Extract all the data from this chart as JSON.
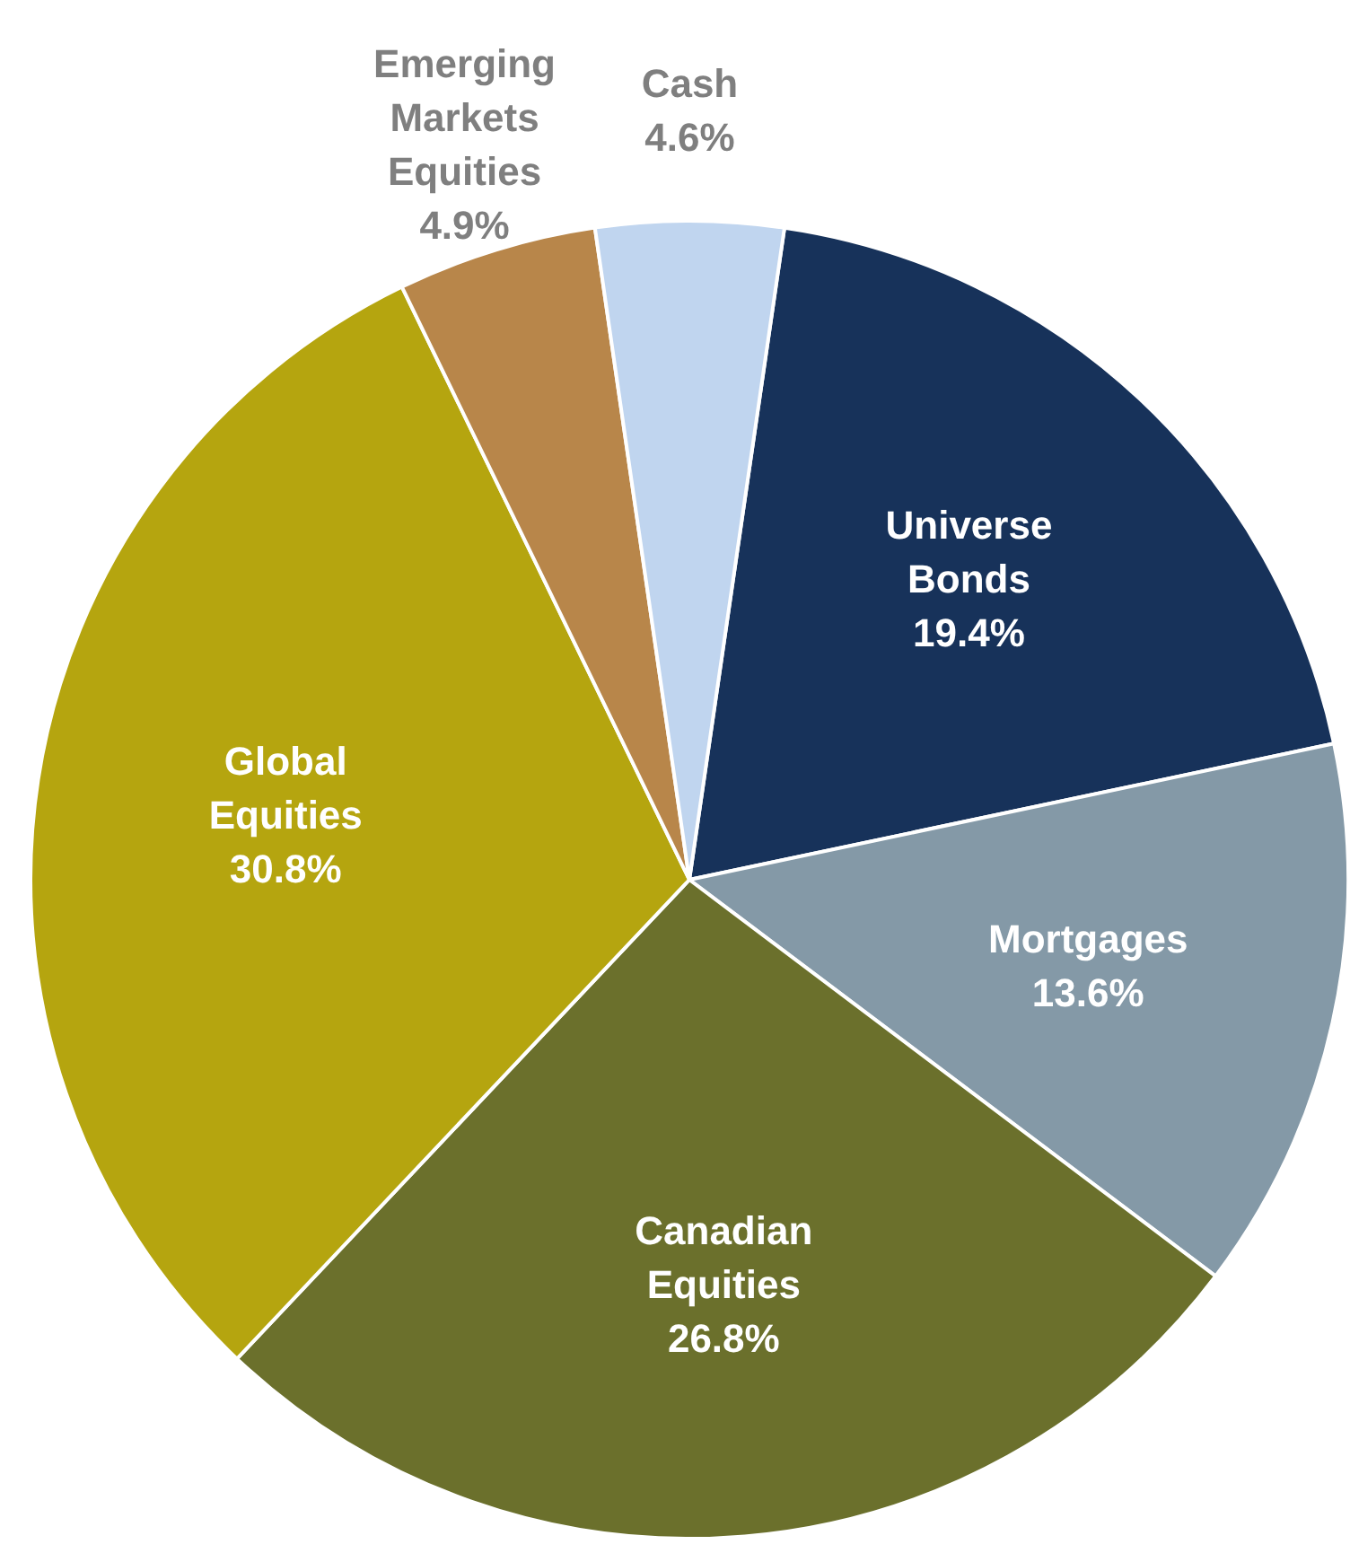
{
  "chart_data": {
    "type": "pie",
    "categories": [
      "Universe Bonds",
      "Mortgages",
      "Canadian Equities",
      "Global Equities",
      "Emerging Markets Equities",
      "Cash"
    ],
    "values": [
      19.4,
      13.6,
      26.8,
      30.8,
      4.9,
      4.6
    ],
    "value_labels": [
      "19.4%",
      "13.6%",
      "26.8%",
      "30.8%",
      "4.9%",
      "4.6%"
    ],
    "colors": [
      "#17325a",
      "#8499a7",
      "#6b702c",
      "#b5a50f",
      "#b8864a",
      "#c0d5ef"
    ],
    "legend": false
  }
}
